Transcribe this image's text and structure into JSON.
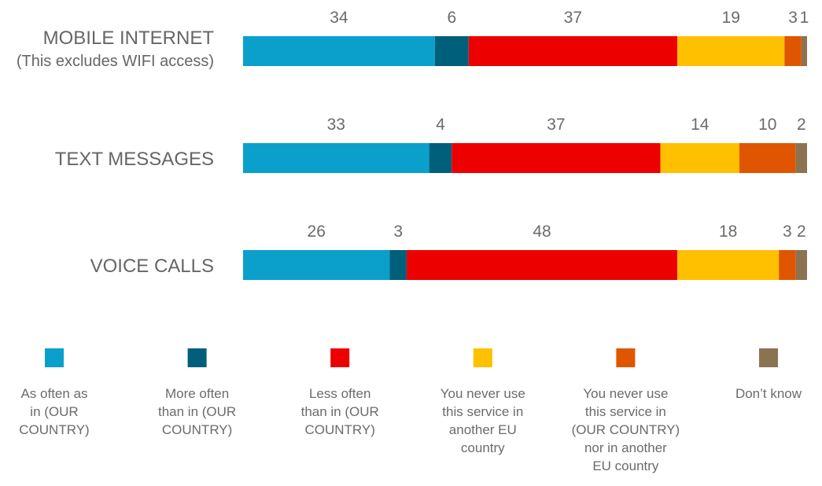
{
  "chart_data": {
    "type": "bar",
    "orientation": "horizontal",
    "stacked": true,
    "grid": false,
    "legend_position": "bottom",
    "categories": [
      [
        "MOBILE INTERNET",
        "(This excludes WIFI access)"
      ],
      [
        "TEXT MESSAGES"
      ],
      [
        "VOICE CALLS"
      ]
    ],
    "series": [
      {
        "name": [
          "As often as",
          "in (OUR",
          "COUNTRY)"
        ],
        "color": "#0aa0cb",
        "values": [
          34,
          33,
          26
        ]
      },
      {
        "name": [
          "More often",
          "than in (OUR",
          "COUNTRY)"
        ],
        "color": "#005f7a",
        "values": [
          6,
          4,
          3
        ]
      },
      {
        "name": [
          "Less often",
          "than in (OUR",
          "COUNTRY)"
        ],
        "color": "#ed0000",
        "values": [
          37,
          37,
          48
        ]
      },
      {
        "name": [
          "You never use",
          "this service in",
          "another EU",
          "country"
        ],
        "color": "#ffc000",
        "values": [
          19,
          14,
          18
        ]
      },
      {
        "name": [
          "You never use",
          "this service in",
          "(OUR COUNTRY)",
          "nor in another",
          "EU country"
        ],
        "color": "#e05600",
        "values": [
          3,
          10,
          3
        ]
      },
      {
        "name": [
          "Don’t know"
        ],
        "color": "#8b7352",
        "values": [
          1,
          2,
          2
        ]
      }
    ]
  }
}
